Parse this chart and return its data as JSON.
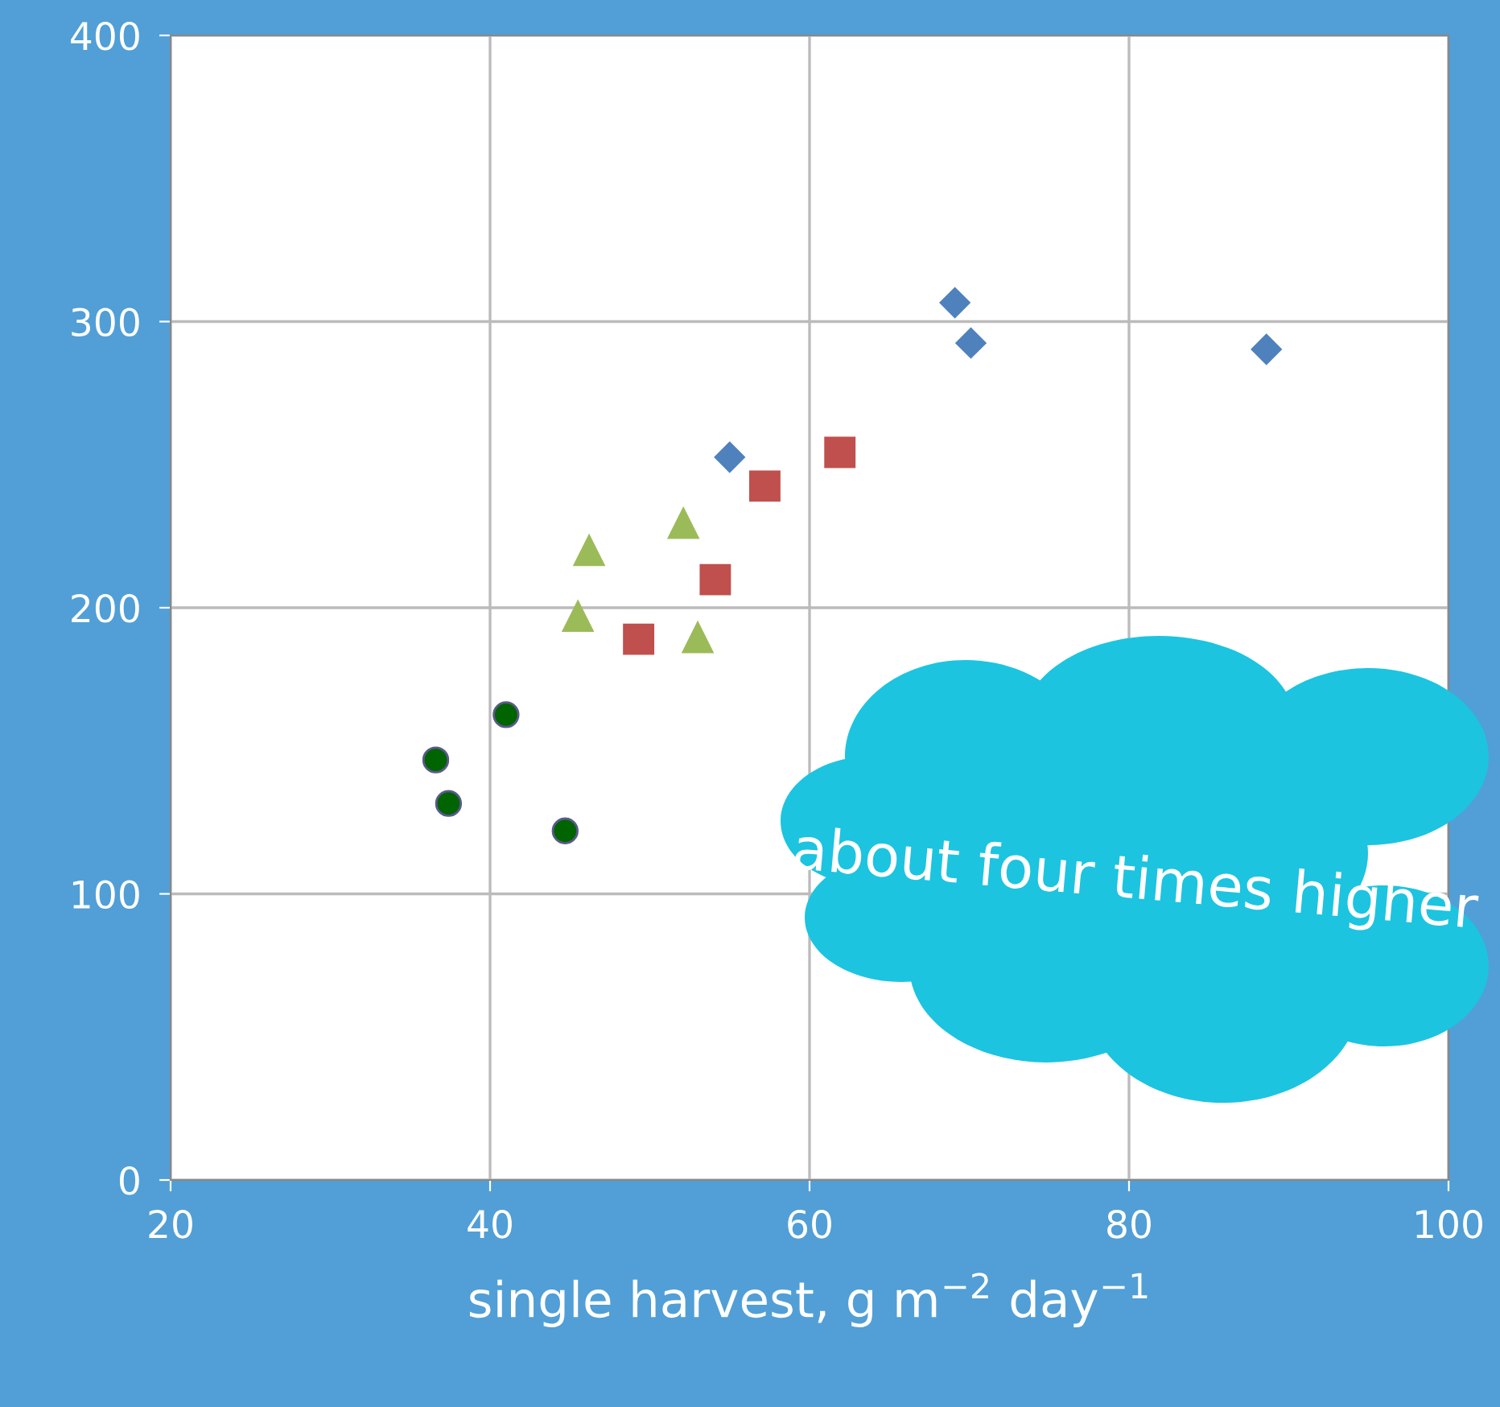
{
  "chart_data": {
    "type": "scatter",
    "xlabel": "single harvest, g m$^{−2}$ day$^{−1}$",
    "xlim": [
      20,
      100
    ],
    "xticks": [
      20,
      40,
      60,
      80,
      100
    ],
    "ylim": [
      0,
      400
    ],
    "yticks": [
      0,
      100,
      200,
      300,
      400
    ],
    "grid": true,
    "series": [
      {
        "color": "#4f81bd",
        "marker": "diamond",
        "x": [
          69.1,
          70.1,
          88.6,
          55.0
        ],
        "values": [
          306.6,
          292.5,
          290.3,
          252.6
        ]
      },
      {
        "color": "#c0504d",
        "marker": "square",
        "x": [
          49.3,
          54.1,
          57.2,
          61.9
        ],
        "values": [
          189,
          209.8,
          242.5,
          254.3
        ]
      },
      {
        "color": "#9bbb59",
        "marker": "triangle",
        "x": [
          45.5,
          46.2,
          52.1,
          53.0
        ],
        "values": [
          197,
          220,
          229.5,
          189.6
        ]
      },
      {
        "color": "#006400",
        "marker": "circle",
        "x": [
          36.6,
          37.4,
          41.0,
          44.7
        ],
        "values": [
          146.8,
          131.6,
          162.6,
          122
        ]
      }
    ],
    "annotations": [
      "about four times higher"
    ]
  }
}
